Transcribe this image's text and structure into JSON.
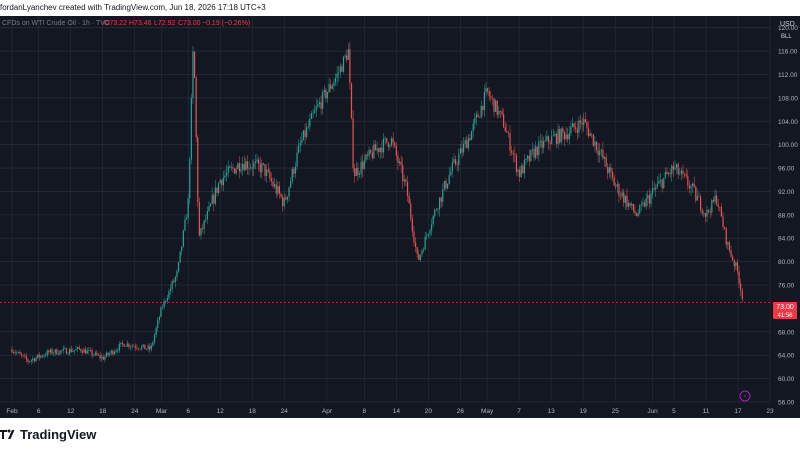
{
  "header": {
    "attribution": "fordanLyanchev created with TradingView.com, Jun 18, 2026 17:18 UTC+3"
  },
  "legend": {
    "symbol": "CFDs on WTI Crude Oil · 1h · TVC",
    "open": "O73.22",
    "high": "H73.46",
    "low": "L72.92",
    "close": "C73.00",
    "change": "−0.19 (−0.26%)"
  },
  "currency": "USD",
  "unit": "BLL",
  "last_price": {
    "value": "73.00",
    "countdown": "41:56"
  },
  "brand": {
    "name": "TradingView"
  },
  "colors": {
    "background": "#131722",
    "grid": "#2a2e39",
    "up": "#26a69a",
    "down": "#ef5350",
    "price_tag": "#f23645",
    "text": "#b2b5be"
  },
  "chart_data": {
    "type": "candlestick",
    "ylim": [
      56,
      122
    ],
    "y_ticks": [
      "120.00",
      "116.00",
      "112.00",
      "108.00",
      "104.00",
      "100.00",
      "96.00",
      "92.00",
      "88.00",
      "84.00",
      "80.00",
      "76.00",
      "68.00",
      "64.00",
      "60.00",
      "56.00"
    ],
    "x_ticks": [
      "Feb",
      "6",
      "12",
      "18",
      "24",
      "Mar",
      "6",
      "12",
      "18",
      "24",
      "Apr",
      "8",
      "14",
      "20",
      "26",
      "May",
      "7",
      "13",
      "19",
      "25",
      "Jun",
      "5",
      "11",
      "17",
      "23"
    ],
    "series": [
      {
        "x": "Feb 1",
        "y": 65.0
      },
      {
        "x": "Feb 4",
        "y": 63.0
      },
      {
        "x": "Feb 8",
        "y": 64.5
      },
      {
        "x": "Feb 14",
        "y": 65.0
      },
      {
        "x": "Feb 18",
        "y": 63.5
      },
      {
        "x": "Feb 22",
        "y": 66.0
      },
      {
        "x": "Feb 27",
        "y": 65.0
      },
      {
        "x": "Mar 1",
        "y": 72.0
      },
      {
        "x": "Mar 4",
        "y": 78.0
      },
      {
        "x": "Mar 6",
        "y": 90.0
      },
      {
        "x": "Mar 7",
        "y": 118.0
      },
      {
        "x": "Mar 8",
        "y": 84.0
      },
      {
        "x": "Mar 12",
        "y": 94.0
      },
      {
        "x": "Mar 16",
        "y": 97.0
      },
      {
        "x": "Mar 20",
        "y": 96.0
      },
      {
        "x": "Mar 24",
        "y": 90.0
      },
      {
        "x": "Mar 27",
        "y": 100.0
      },
      {
        "x": "Mar 30",
        "y": 106.0
      },
      {
        "x": "Apr 3",
        "y": 112.0
      },
      {
        "x": "Apr 5",
        "y": 116.0
      },
      {
        "x": "Apr 6",
        "y": 95.0
      },
      {
        "x": "Apr 10",
        "y": 99.0
      },
      {
        "x": "Apr 13",
        "y": 101.0
      },
      {
        "x": "Apr 16",
        "y": 92.0
      },
      {
        "x": "Apr 18",
        "y": 80.0
      },
      {
        "x": "Apr 21",
        "y": 88.0
      },
      {
        "x": "Apr 24",
        "y": 95.0
      },
      {
        "x": "Apr 28",
        "y": 102.0
      },
      {
        "x": "May 1",
        "y": 109.0
      },
      {
        "x": "May 4",
        "y": 104.0
      },
      {
        "x": "May 7",
        "y": 95.0
      },
      {
        "x": "May 10",
        "y": 99.0
      },
      {
        "x": "May 13",
        "y": 101.0
      },
      {
        "x": "May 16",
        "y": 102.0
      },
      {
        "x": "May 19",
        "y": 104.0
      },
      {
        "x": "May 22",
        "y": 99.0
      },
      {
        "x": "May 25",
        "y": 93.0
      },
      {
        "x": "May 29",
        "y": 88.0
      },
      {
        "x": "Jun 2",
        "y": 93.0
      },
      {
        "x": "Jun 5",
        "y": 96.0
      },
      {
        "x": "Jun 8",
        "y": 93.0
      },
      {
        "x": "Jun 11",
        "y": 88.0
      },
      {
        "x": "Jun 13",
        "y": 91.0
      },
      {
        "x": "Jun 15",
        "y": 83.0
      },
      {
        "x": "Jun 17",
        "y": 78.0
      },
      {
        "x": "Jun 18",
        "y": 73.0
      }
    ]
  }
}
